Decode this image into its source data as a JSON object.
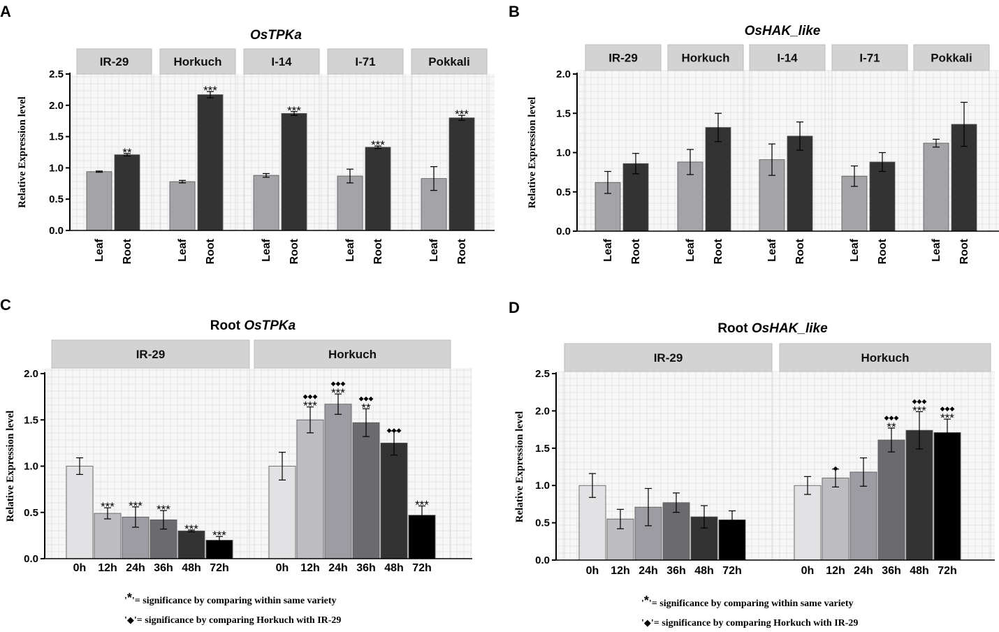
{
  "chart_data": [
    {
      "id": "A",
      "panel_label": "A",
      "type": "bar",
      "title": "OsTPKa",
      "title_italic": true,
      "ylabel": "Relative Expression level",
      "ylim": [
        0,
        2.5
      ],
      "yticks": [
        "0.0",
        "0.5",
        "1.0",
        "1.5",
        "2.0",
        "2.5"
      ],
      "facets": [
        "IR-29",
        "Horkuch",
        "I-14",
        "I-71",
        "Pokkali"
      ],
      "categories": [
        "Leaf",
        "Root"
      ],
      "category_colors": [
        "#a3a3a8",
        "#333333"
      ],
      "groups": [
        {
          "facet": "IR-29",
          "values": [
            0.94,
            1.21
          ],
          "errors": [
            0.01,
            0.02
          ],
          "sig": [
            "",
            "**"
          ]
        },
        {
          "facet": "Horkuch",
          "values": [
            0.78,
            2.17
          ],
          "errors": [
            0.02,
            0.05
          ],
          "sig": [
            "",
            "***"
          ]
        },
        {
          "facet": "I-14",
          "values": [
            0.88,
            1.87
          ],
          "errors": [
            0.03,
            0.03
          ],
          "sig": [
            "",
            "***"
          ]
        },
        {
          "facet": "I-71",
          "values": [
            0.87,
            1.33
          ],
          "errors": [
            0.11,
            0.02
          ],
          "sig": [
            "",
            "***"
          ]
        },
        {
          "facet": "Pokkali",
          "values": [
            0.83,
            1.8
          ],
          "errors": [
            0.19,
            0.04
          ],
          "sig": [
            "",
            "***"
          ]
        }
      ]
    },
    {
      "id": "B",
      "panel_label": "B",
      "type": "bar",
      "title": "OsHAK_like",
      "title_italic": true,
      "ylabel": "Relative Expression level",
      "ylim": [
        0,
        2.0
      ],
      "yticks": [
        "0.0",
        "0.5",
        "1.0",
        "1.5",
        "2.0"
      ],
      "facets": [
        "IR-29",
        "Horkuch",
        "I-14",
        "I-71",
        "Pokkali"
      ],
      "categories": [
        "Leaf",
        "Root"
      ],
      "category_colors": [
        "#a3a3a8",
        "#333333"
      ],
      "groups": [
        {
          "facet": "IR-29",
          "values": [
            0.62,
            0.86
          ],
          "errors": [
            0.14,
            0.13
          ],
          "sig": [
            "",
            ""
          ]
        },
        {
          "facet": "Horkuch",
          "values": [
            0.88,
            1.32
          ],
          "errors": [
            0.16,
            0.18
          ],
          "sig": [
            "",
            ""
          ]
        },
        {
          "facet": "I-14",
          "values": [
            0.91,
            1.21
          ],
          "errors": [
            0.2,
            0.18
          ],
          "sig": [
            "",
            ""
          ]
        },
        {
          "facet": "I-71",
          "values": [
            0.7,
            0.88
          ],
          "errors": [
            0.13,
            0.12
          ],
          "sig": [
            "",
            ""
          ]
        },
        {
          "facet": "Pokkali",
          "values": [
            1.12,
            1.36
          ],
          "errors": [
            0.05,
            0.28
          ],
          "sig": [
            "",
            ""
          ]
        }
      ]
    },
    {
      "id": "C",
      "panel_label": "C",
      "type": "bar",
      "title_prefix": "Root ",
      "title": "OsTPKa",
      "title_italic": true,
      "ylabel": "Relative Expression level",
      "ylim": [
        0,
        2.0
      ],
      "yticks": [
        "0.0",
        "0.5",
        "1.0",
        "1.5",
        "2.0"
      ],
      "facets": [
        "IR-29",
        "Horkuch"
      ],
      "categories": [
        "0h",
        "12h",
        "24h",
        "36h",
        "48h",
        "72h"
      ],
      "category_colors": [
        "#e2e2e4",
        "#bdbdc2",
        "#9c9ca2",
        "#6b6b6f",
        "#333333",
        "#000000"
      ],
      "groups": [
        {
          "facet": "IR-29",
          "values": [
            1.0,
            0.49,
            0.45,
            0.42,
            0.3,
            0.2
          ],
          "errors": [
            0.09,
            0.06,
            0.11,
            0.1,
            0.01,
            0.04
          ],
          "sig": [
            "",
            "***",
            "***",
            "***",
            "***",
            "***"
          ],
          "diamonds": [
            "",
            "",
            "",
            "",
            "",
            ""
          ]
        },
        {
          "facet": "Horkuch",
          "values": [
            1.0,
            1.5,
            1.67,
            1.47,
            1.25,
            0.47
          ],
          "errors": [
            0.15,
            0.14,
            0.11,
            0.15,
            0.13,
            0.1
          ],
          "sig": [
            "",
            "***",
            "***",
            "**",
            "",
            "***"
          ],
          "diamonds": [
            "",
            "◆◆◆",
            "◆◆◆",
            "◆◆◆",
            "◆◆◆",
            ""
          ]
        }
      ],
      "legend": {
        "star_symbol": "*",
        "star_text": "= significance by comparing within same variety",
        "diamond_symbol": "◆",
        "diamond_text": "= significance by comparing Horkuch with IR-29",
        "quote_open": "'",
        "quote_close": "'"
      }
    },
    {
      "id": "D",
      "panel_label": "D",
      "type": "bar",
      "title_prefix": "Root ",
      "title": "OsHAK_like",
      "title_italic": true,
      "ylabel": "Relative Expression level",
      "ylim": [
        0,
        2.5
      ],
      "yticks": [
        "0.0",
        "0.5",
        "1.0",
        "1.5",
        "2.0",
        "2.5"
      ],
      "facets": [
        "IR-29",
        "Horkuch"
      ],
      "categories": [
        "0h",
        "12h",
        "24h",
        "36h",
        "48h",
        "72h"
      ],
      "category_colors": [
        "#e2e2e4",
        "#bdbdc2",
        "#9c9ca2",
        "#6b6b6f",
        "#333333",
        "#000000"
      ],
      "groups": [
        {
          "facet": "IR-29",
          "values": [
            1.0,
            0.55,
            0.71,
            0.77,
            0.58,
            0.54
          ],
          "errors": [
            0.16,
            0.13,
            0.25,
            0.13,
            0.15,
            0.12
          ],
          "sig": [
            "",
            "",
            "",
            "",
            "",
            ""
          ],
          "diamonds": [
            "",
            "",
            "",
            "",
            "",
            ""
          ]
        },
        {
          "facet": "Horkuch",
          "values": [
            1.0,
            1.1,
            1.18,
            1.61,
            1.74,
            1.71
          ],
          "errors": [
            0.12,
            0.12,
            0.19,
            0.16,
            0.25,
            0.18
          ],
          "sig": [
            "",
            "",
            "",
            "**",
            "***",
            "***"
          ],
          "diamonds": [
            "",
            "◆",
            "",
            "◆◆◆",
            "◆◆◆",
            "◆◆◆"
          ]
        }
      ],
      "legend": {
        "star_symbol": "*",
        "star_text": "= significance by comparing within same variety",
        "diamond_symbol": "◆",
        "diamond_text": "= significance by comparing Horkuch with IR-29",
        "quote_open": "'",
        "quote_close": "'"
      }
    }
  ]
}
